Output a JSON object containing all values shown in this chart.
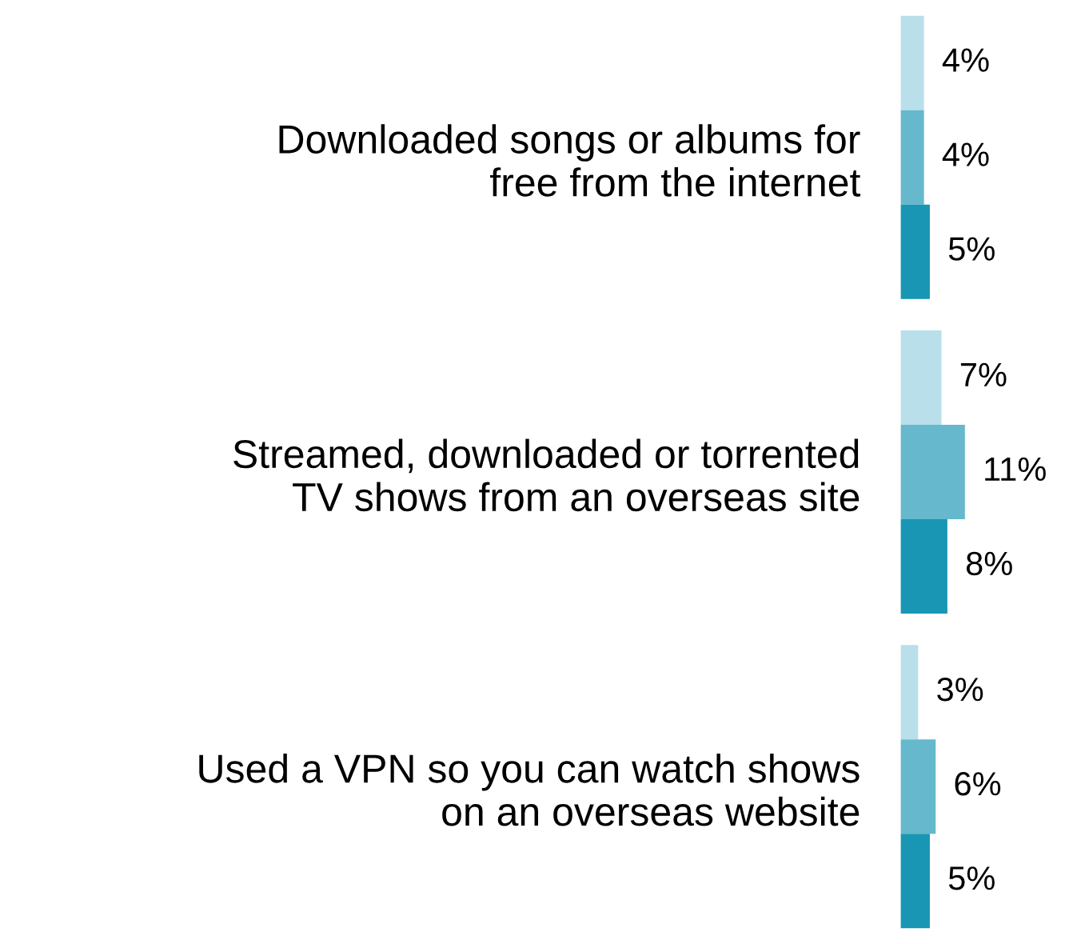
{
  "chart_data": {
    "type": "bar",
    "orientation": "horizontal",
    "categories": [
      "Downloaded songs or albums for\nfree from the internet",
      "Streamed, downloaded or torrented\nTV shows from an overseas site",
      "Used a VPN so you can watch shows\non an overseas website"
    ],
    "series": [
      {
        "color": "#b9dfea",
        "values": [
          4,
          7,
          3
        ],
        "value_labels": [
          "4%",
          "7%",
          "3%"
        ]
      },
      {
        "color": "#66b8cd",
        "values": [
          4,
          11,
          6
        ],
        "value_labels": [
          "4%",
          "11%",
          "6%"
        ]
      },
      {
        "color": "#1896b3",
        "values": [
          5,
          8,
          5
        ],
        "value_labels": [
          "5%",
          "8%",
          "5%"
        ]
      }
    ],
    "tick_labels": "y",
    "grid": false,
    "legend": false
  }
}
